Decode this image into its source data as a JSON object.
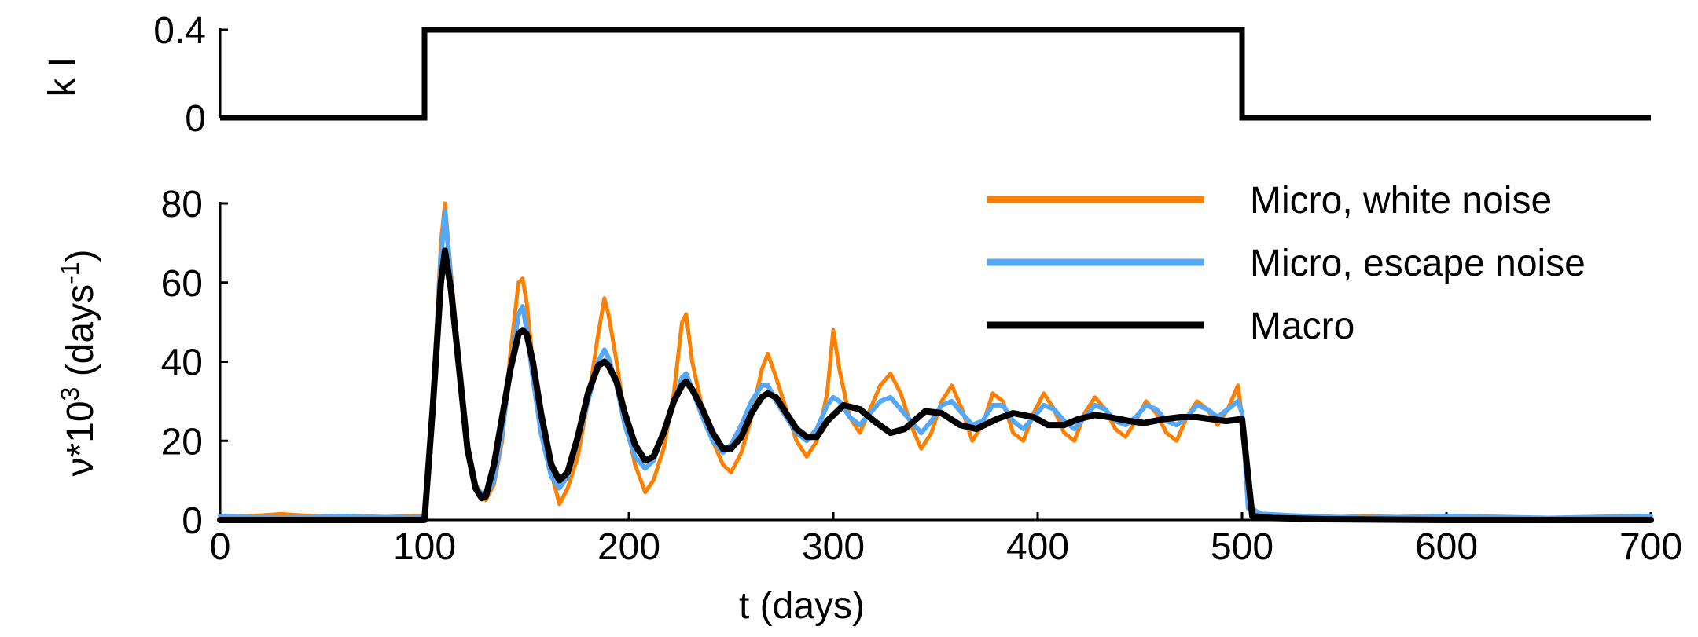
{
  "chart_data": [
    {
      "type": "line",
      "panel": "top",
      "ylabel": "k I",
      "xlim": [
        0,
        700
      ],
      "ylim": [
        0,
        0.4
      ],
      "yticks": [
        {
          "value": 0,
          "label": "0"
        },
        {
          "value": 0.4,
          "label": "0.4"
        }
      ],
      "series": [
        {
          "name": "k I",
          "color": "#000000",
          "x": [
            0,
            100,
            100,
            500,
            500,
            700
          ],
          "values": [
            0,
            0,
            0.4,
            0.4,
            0,
            0
          ]
        }
      ]
    },
    {
      "type": "line",
      "panel": "bottom",
      "xlabel": "t (days)",
      "ylabel_parts": {
        "base": "ν*10",
        "sup1": "3",
        "mid": " (days",
        "sup2": "-1",
        "end": ")"
      },
      "xlim": [
        0,
        700
      ],
      "ylim": [
        0,
        80
      ],
      "xticks": [
        {
          "value": 0,
          "label": "0"
        },
        {
          "value": 100,
          "label": "100"
        },
        {
          "value": 200,
          "label": "200"
        },
        {
          "value": 300,
          "label": "300"
        },
        {
          "value": 400,
          "label": "400"
        },
        {
          "value": 500,
          "label": "500"
        },
        {
          "value": 600,
          "label": "600"
        },
        {
          "value": 700,
          "label": "700"
        }
      ],
      "yticks": [
        {
          "value": 0,
          "label": "0"
        },
        {
          "value": 20,
          "label": "20"
        },
        {
          "value": 40,
          "label": "40"
        },
        {
          "value": 60,
          "label": "60"
        },
        {
          "value": 80,
          "label": "80"
        }
      ],
      "legend_position": "top-right",
      "series": [
        {
          "name": "Micro, white noise",
          "color": "#ff8000",
          "x": [
            0,
            30,
            60,
            95,
            100,
            104,
            108,
            110,
            113,
            117,
            121,
            125,
            130,
            134,
            138,
            142,
            146,
            148,
            150,
            153,
            157,
            162,
            166,
            170,
            175,
            180,
            185,
            188,
            190,
            194,
            198,
            203,
            208,
            212,
            217,
            222,
            226,
            228,
            231,
            236,
            241,
            246,
            250,
            255,
            260,
            265,
            268,
            272,
            277,
            282,
            287,
            292,
            297,
            300,
            303,
            308,
            313,
            318,
            323,
            328,
            333,
            338,
            343,
            348,
            353,
            358,
            363,
            368,
            373,
            378,
            383,
            388,
            393,
            398,
            403,
            408,
            413,
            418,
            423,
            428,
            433,
            438,
            443,
            448,
            453,
            458,
            463,
            468,
            473,
            478,
            483,
            488,
            493,
            498,
            500,
            503,
            510,
            530,
            560,
            600,
            650,
            700
          ],
          "values": [
            0.5,
            1.5,
            0.5,
            1.0,
            1.0,
            30,
            70,
            80,
            62,
            40,
            20,
            9,
            5,
            9,
            20,
            42,
            60,
            61,
            55,
            40,
            25,
            12,
            4,
            8,
            16,
            30,
            47,
            56,
            52,
            40,
            26,
            14,
            7,
            10,
            18,
            32,
            50,
            52,
            40,
            28,
            20,
            14,
            12,
            17,
            26,
            38,
            42,
            36,
            28,
            20,
            16,
            20,
            32,
            48,
            38,
            26,
            22,
            28,
            34,
            37,
            32,
            24,
            18,
            22,
            30,
            34,
            28,
            20,
            24,
            32,
            30,
            22,
            20,
            27,
            32,
            28,
            22,
            20,
            27,
            31,
            28,
            23,
            21,
            25,
            30,
            27,
            22,
            20,
            26,
            30,
            28,
            24,
            28,
            34,
            26,
            4,
            1.0,
            0.5,
            1.0,
            0.5,
            0.5,
            0.5
          ]
        },
        {
          "name": "Micro, escape noise",
          "color": "#55a8f5",
          "x": [
            0,
            30,
            60,
            95,
            100,
            104,
            108,
            110,
            113,
            117,
            121,
            125,
            130,
            134,
            138,
            142,
            146,
            148,
            150,
            153,
            157,
            162,
            166,
            170,
            175,
            180,
            185,
            188,
            190,
            194,
            198,
            203,
            208,
            212,
            217,
            222,
            226,
            228,
            231,
            236,
            241,
            246,
            250,
            255,
            260,
            265,
            268,
            272,
            277,
            282,
            287,
            292,
            297,
            300,
            303,
            308,
            313,
            318,
            323,
            328,
            333,
            338,
            343,
            348,
            353,
            358,
            363,
            368,
            373,
            378,
            383,
            388,
            393,
            398,
            403,
            408,
            413,
            418,
            423,
            428,
            433,
            438,
            443,
            448,
            453,
            458,
            463,
            468,
            473,
            478,
            483,
            488,
            493,
            498,
            500,
            503,
            510,
            530,
            560,
            600,
            650,
            700
          ],
          "values": [
            1.0,
            0.5,
            1.0,
            0.5,
            1.0,
            28,
            66,
            78,
            60,
            38,
            18,
            8,
            6,
            10,
            22,
            38,
            52,
            54,
            48,
            36,
            22,
            11,
            8,
            11,
            20,
            30,
            40,
            43,
            41,
            34,
            24,
            16,
            13,
            15,
            22,
            30,
            36,
            37,
            33,
            26,
            20,
            17,
            19,
            24,
            30,
            34,
            34,
            30,
            26,
            22,
            20,
            23,
            29,
            31,
            30,
            26,
            24,
            27,
            30,
            31,
            28,
            25,
            22,
            25,
            29,
            30,
            27,
            24,
            25,
            29,
            29,
            25,
            23,
            26,
            29,
            28,
            25,
            23,
            26,
            29,
            28,
            25,
            24,
            26,
            29,
            28,
            25,
            24,
            26,
            29,
            28,
            26,
            28,
            30,
            27,
            3,
            1.5,
            1.0,
            0.5,
            1.0,
            0.5,
            1.0
          ]
        },
        {
          "name": "Macro",
          "color": "#000000",
          "x": [
            0,
            50,
            99.9,
            100,
            104,
            108,
            110,
            113,
            117,
            121,
            125,
            128,
            130,
            134,
            138,
            142,
            146,
            148,
            150,
            153,
            157,
            162,
            166,
            170,
            175,
            180,
            185,
            188,
            190,
            194,
            198,
            203,
            208,
            212,
            217,
            222,
            226,
            228,
            231,
            236,
            241,
            246,
            250,
            255,
            260,
            265,
            268,
            272,
            277,
            282,
            287,
            292,
            297,
            305,
            313,
            320,
            328,
            335,
            345,
            353,
            362,
            370,
            380,
            388,
            398,
            405,
            413,
            420,
            428,
            435,
            445,
            452,
            462,
            470,
            478,
            485,
            492,
            499.9,
            500,
            505,
            515,
            540,
            600,
            700
          ],
          "values": [
            0,
            0,
            0,
            0,
            28,
            60,
            68,
            58,
            38,
            18,
            8,
            5.5,
            6,
            14,
            26,
            38,
            47,
            48,
            47,
            40,
            27,
            14,
            10,
            12,
            21,
            32,
            39,
            40,
            39,
            35,
            27,
            19,
            15,
            16,
            22,
            30,
            34,
            35,
            33,
            28,
            22,
            18,
            18,
            21,
            27,
            31,
            32,
            31,
            27,
            23,
            21,
            21,
            25,
            29,
            28,
            25,
            22,
            23,
            27.5,
            27,
            24,
            23,
            25.5,
            27,
            26,
            24,
            24,
            25.5,
            26.5,
            26,
            25,
            24.5,
            25.5,
            26,
            26,
            25.5,
            25,
            25.5,
            25.5,
            1.0,
            0.5,
            0.2,
            0,
            0
          ]
        }
      ]
    }
  ]
}
